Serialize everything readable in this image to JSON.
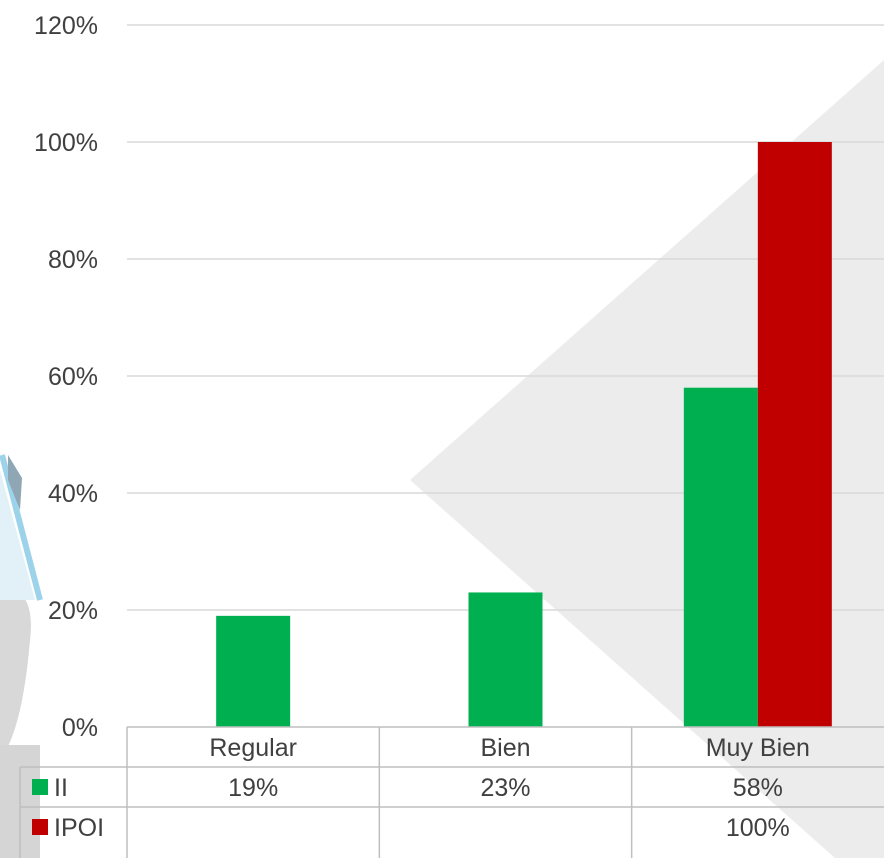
{
  "chart_data": {
    "type": "bar",
    "categories": [
      "Regular",
      "Bien",
      "Muy Bien"
    ],
    "series": [
      {
        "name": "II",
        "values": [
          19,
          23,
          58
        ],
        "labels": [
          "19%",
          "23%",
          "58%"
        ],
        "color": "#00b050"
      },
      {
        "name": "IPOI",
        "values": [
          null,
          null,
          100
        ],
        "labels": [
          "",
          "",
          "100%"
        ],
        "color": "#c00000"
      }
    ],
    "ylim": [
      0,
      120
    ],
    "yticks": [
      0,
      20,
      40,
      60,
      80,
      100,
      120
    ],
    "ytick_labels": [
      "0%",
      "20%",
      "40%",
      "60%",
      "80%",
      "100%",
      "120%"
    ],
    "grid": true,
    "legend_placement": "data-table",
    "title": "",
    "xlabel": "",
    "ylabel": ""
  },
  "colors": {
    "grid": "#d9d9d9",
    "table_border": "#bfbfbf",
    "decor_triangle": "#ececec",
    "decor_figure": "#d8d8d8",
    "decor_blue": "#9dd3ea"
  }
}
